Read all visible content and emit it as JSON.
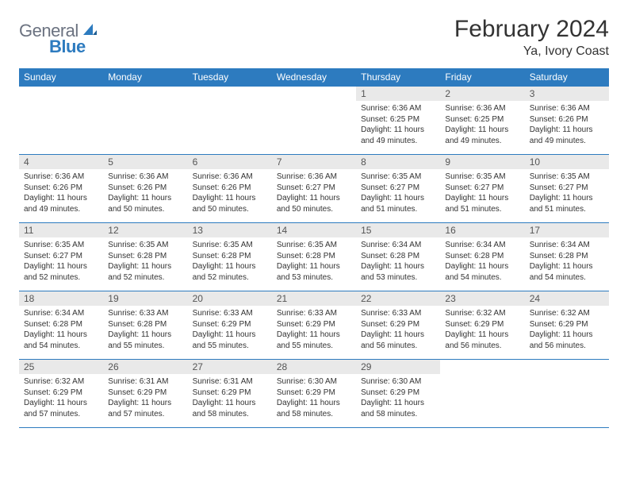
{
  "logo": {
    "word1": "General",
    "word2": "Blue"
  },
  "title": "February 2024",
  "location": "Ya, Ivory Coast",
  "colors": {
    "brand_blue": "#2d7bbf",
    "header_text": "#ffffff",
    "daynum_bg": "#e9e9e9",
    "body_text": "#333333",
    "logo_gray": "#6b7280",
    "page_bg": "#ffffff"
  },
  "fonts": {
    "base_family": "Arial",
    "title_size_pt": 22,
    "location_size_pt": 12,
    "header_size_pt": 9,
    "body_size_pt": 7.5
  },
  "weekdays": [
    "Sunday",
    "Monday",
    "Tuesday",
    "Wednesday",
    "Thursday",
    "Friday",
    "Saturday"
  ],
  "grid": [
    [
      {
        "n": "",
        "sr": "",
        "ss": "",
        "dl": ""
      },
      {
        "n": "",
        "sr": "",
        "ss": "",
        "dl": ""
      },
      {
        "n": "",
        "sr": "",
        "ss": "",
        "dl": ""
      },
      {
        "n": "",
        "sr": "",
        "ss": "",
        "dl": ""
      },
      {
        "n": "1",
        "sr": "Sunrise: 6:36 AM",
        "ss": "Sunset: 6:25 PM",
        "dl": "Daylight: 11 hours and 49 minutes."
      },
      {
        "n": "2",
        "sr": "Sunrise: 6:36 AM",
        "ss": "Sunset: 6:25 PM",
        "dl": "Daylight: 11 hours and 49 minutes."
      },
      {
        "n": "3",
        "sr": "Sunrise: 6:36 AM",
        "ss": "Sunset: 6:26 PM",
        "dl": "Daylight: 11 hours and 49 minutes."
      }
    ],
    [
      {
        "n": "4",
        "sr": "Sunrise: 6:36 AM",
        "ss": "Sunset: 6:26 PM",
        "dl": "Daylight: 11 hours and 49 minutes."
      },
      {
        "n": "5",
        "sr": "Sunrise: 6:36 AM",
        "ss": "Sunset: 6:26 PM",
        "dl": "Daylight: 11 hours and 50 minutes."
      },
      {
        "n": "6",
        "sr": "Sunrise: 6:36 AM",
        "ss": "Sunset: 6:26 PM",
        "dl": "Daylight: 11 hours and 50 minutes."
      },
      {
        "n": "7",
        "sr": "Sunrise: 6:36 AM",
        "ss": "Sunset: 6:27 PM",
        "dl": "Daylight: 11 hours and 50 minutes."
      },
      {
        "n": "8",
        "sr": "Sunrise: 6:35 AM",
        "ss": "Sunset: 6:27 PM",
        "dl": "Daylight: 11 hours and 51 minutes."
      },
      {
        "n": "9",
        "sr": "Sunrise: 6:35 AM",
        "ss": "Sunset: 6:27 PM",
        "dl": "Daylight: 11 hours and 51 minutes."
      },
      {
        "n": "10",
        "sr": "Sunrise: 6:35 AM",
        "ss": "Sunset: 6:27 PM",
        "dl": "Daylight: 11 hours and 51 minutes."
      }
    ],
    [
      {
        "n": "11",
        "sr": "Sunrise: 6:35 AM",
        "ss": "Sunset: 6:27 PM",
        "dl": "Daylight: 11 hours and 52 minutes."
      },
      {
        "n": "12",
        "sr": "Sunrise: 6:35 AM",
        "ss": "Sunset: 6:28 PM",
        "dl": "Daylight: 11 hours and 52 minutes."
      },
      {
        "n": "13",
        "sr": "Sunrise: 6:35 AM",
        "ss": "Sunset: 6:28 PM",
        "dl": "Daylight: 11 hours and 52 minutes."
      },
      {
        "n": "14",
        "sr": "Sunrise: 6:35 AM",
        "ss": "Sunset: 6:28 PM",
        "dl": "Daylight: 11 hours and 53 minutes."
      },
      {
        "n": "15",
        "sr": "Sunrise: 6:34 AM",
        "ss": "Sunset: 6:28 PM",
        "dl": "Daylight: 11 hours and 53 minutes."
      },
      {
        "n": "16",
        "sr": "Sunrise: 6:34 AM",
        "ss": "Sunset: 6:28 PM",
        "dl": "Daylight: 11 hours and 54 minutes."
      },
      {
        "n": "17",
        "sr": "Sunrise: 6:34 AM",
        "ss": "Sunset: 6:28 PM",
        "dl": "Daylight: 11 hours and 54 minutes."
      }
    ],
    [
      {
        "n": "18",
        "sr": "Sunrise: 6:34 AM",
        "ss": "Sunset: 6:28 PM",
        "dl": "Daylight: 11 hours and 54 minutes."
      },
      {
        "n": "19",
        "sr": "Sunrise: 6:33 AM",
        "ss": "Sunset: 6:28 PM",
        "dl": "Daylight: 11 hours and 55 minutes."
      },
      {
        "n": "20",
        "sr": "Sunrise: 6:33 AM",
        "ss": "Sunset: 6:29 PM",
        "dl": "Daylight: 11 hours and 55 minutes."
      },
      {
        "n": "21",
        "sr": "Sunrise: 6:33 AM",
        "ss": "Sunset: 6:29 PM",
        "dl": "Daylight: 11 hours and 55 minutes."
      },
      {
        "n": "22",
        "sr": "Sunrise: 6:33 AM",
        "ss": "Sunset: 6:29 PM",
        "dl": "Daylight: 11 hours and 56 minutes."
      },
      {
        "n": "23",
        "sr": "Sunrise: 6:32 AM",
        "ss": "Sunset: 6:29 PM",
        "dl": "Daylight: 11 hours and 56 minutes."
      },
      {
        "n": "24",
        "sr": "Sunrise: 6:32 AM",
        "ss": "Sunset: 6:29 PM",
        "dl": "Daylight: 11 hours and 56 minutes."
      }
    ],
    [
      {
        "n": "25",
        "sr": "Sunrise: 6:32 AM",
        "ss": "Sunset: 6:29 PM",
        "dl": "Daylight: 11 hours and 57 minutes."
      },
      {
        "n": "26",
        "sr": "Sunrise: 6:31 AM",
        "ss": "Sunset: 6:29 PM",
        "dl": "Daylight: 11 hours and 57 minutes."
      },
      {
        "n": "27",
        "sr": "Sunrise: 6:31 AM",
        "ss": "Sunset: 6:29 PM",
        "dl": "Daylight: 11 hours and 58 minutes."
      },
      {
        "n": "28",
        "sr": "Sunrise: 6:30 AM",
        "ss": "Sunset: 6:29 PM",
        "dl": "Daylight: 11 hours and 58 minutes."
      },
      {
        "n": "29",
        "sr": "Sunrise: 6:30 AM",
        "ss": "Sunset: 6:29 PM",
        "dl": "Daylight: 11 hours and 58 minutes."
      },
      {
        "n": "",
        "sr": "",
        "ss": "",
        "dl": ""
      },
      {
        "n": "",
        "sr": "",
        "ss": "",
        "dl": ""
      }
    ]
  ]
}
